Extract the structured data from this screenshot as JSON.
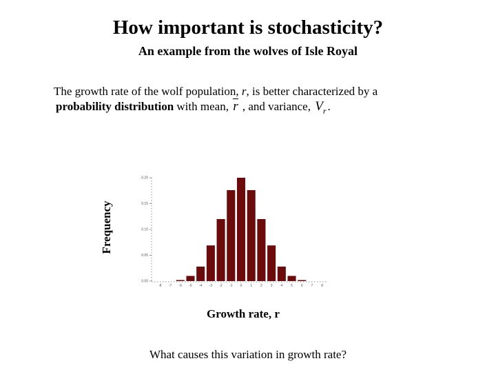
{
  "title": "How important is stochasticity?",
  "subtitle": "An example from the wolves of Isle Royal",
  "intro": {
    "part1": "The growth rate of the wolf population, ",
    "r_var": "r",
    "part2": ", is better characterized by a",
    "bold_term": "probability distribution",
    "part3": " with mean,",
    "mean_symbol": "r",
    "part4": ", and variance,",
    "var_symbol": "V",
    "var_subscript": "r",
    "part5": "."
  },
  "question": "What causes this variation in growth rate?",
  "colors": {
    "bar": "#6b0b0b",
    "axis": "#666666"
  },
  "chart_data": {
    "type": "bar",
    "title": "",
    "xlabel": "Growth rate, r",
    "ylabel": "Frequency",
    "ylim": [
      0,
      0.2
    ],
    "yticks": [
      "0.00",
      "0.05",
      "0.10",
      "0.15",
      "0.20"
    ],
    "categories": [
      "-8",
      "-7",
      "-6",
      "-5",
      "-4",
      "-3",
      "-2",
      "-1",
      "0",
      "1",
      "2",
      "3",
      "4",
      "5",
      "6",
      "7",
      "8"
    ],
    "values": [
      0,
      0,
      0.002,
      0.01,
      0.028,
      0.069,
      0.12,
      0.176,
      0.2,
      0.176,
      0.12,
      0.069,
      0.028,
      0.01,
      0.002,
      0,
      0
    ],
    "grid": false,
    "legend": "none"
  }
}
